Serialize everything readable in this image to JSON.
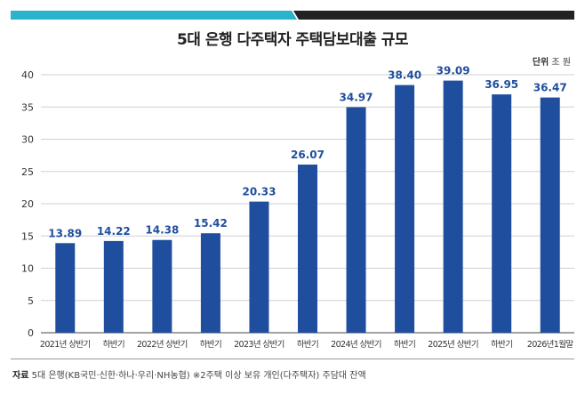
{
  "title": "5대 은행 다주택자 주택담보대출 규모",
  "unit_label": "단위",
  "unit_value": "조 원",
  "source_label": "자료",
  "source_text": "5대 은행(KB국민·신한·하나·우리·NH농협) ※2주택 이상 보유 개인(다주택자) 주담대 잔액",
  "colors": {
    "bar": "#1f4e9e",
    "label": "#1f4e9e",
    "grid": "#d0d0d0",
    "bar_accent_left": "#2bb3c9",
    "bar_accent_right": "#222222"
  },
  "chart_data": {
    "type": "bar",
    "categories": [
      "2021년 상반기",
      "하반기",
      "2022년 상반기",
      "하반기",
      "2023년 상반기",
      "하반기",
      "2024년 상반기",
      "하반기",
      "2025년 상반기",
      "하반기",
      "2026년1월말"
    ],
    "values": [
      13.89,
      14.22,
      14.38,
      15.42,
      20.33,
      26.07,
      34.97,
      38.4,
      39.09,
      36.95,
      36.47
    ],
    "value_labels": [
      "13.89",
      "14.22",
      "14.38",
      "15.42",
      "20.33",
      "26.07",
      "34.97",
      "38.40",
      "39.09",
      "36.95",
      "36.47"
    ],
    "yticks": [
      "0",
      "5",
      "10",
      "15",
      "20",
      "25",
      "30",
      "35",
      "40"
    ],
    "ylim": [
      0,
      40
    ],
    "grid": true
  }
}
